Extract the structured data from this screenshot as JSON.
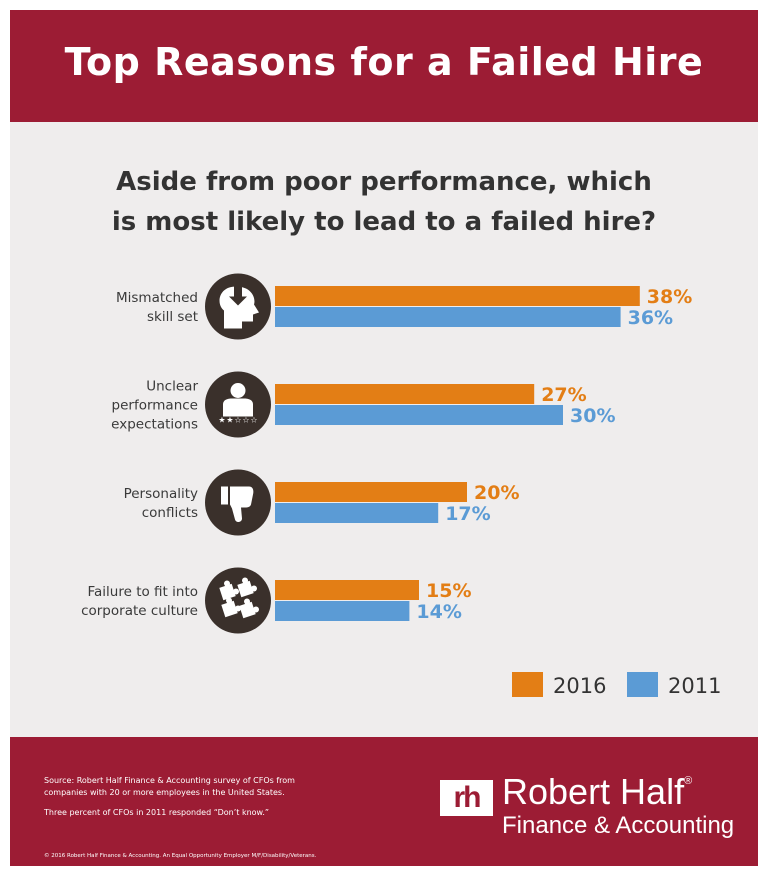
{
  "header": {
    "title": "Top Reasons for a Failed Hire"
  },
  "question": {
    "line1": "Aside from poor performance, which",
    "line2": "is most likely to lead to a failed hire?"
  },
  "chart_data": {
    "type": "bar",
    "orientation": "horizontal",
    "categories": [
      [
        "Mismatched",
        "skill set"
      ],
      [
        "Unclear",
        "performance",
        "expectations"
      ],
      [
        "Personality",
        "conflicts"
      ],
      [
        "Failure to fit into",
        "corporate culture"
      ]
    ],
    "icons": [
      "head-arrow-icon",
      "person-rating-icon",
      "thumbs-down-icon",
      "puzzle-pieces-icon"
    ],
    "series": [
      {
        "name": "2016",
        "color": "#e37e15",
        "values": [
          38,
          27,
          20,
          15
        ],
        "labels": [
          "38%",
          "27%",
          "20%",
          "15%"
        ]
      },
      {
        "name": "2011",
        "color": "#5b9bd5",
        "values": [
          36,
          30,
          17,
          14
        ],
        "labels": [
          "36%",
          "30%",
          "17%",
          "14%"
        ]
      }
    ],
    "unit": "%",
    "legend_position": "bottom-right"
  },
  "footer": {
    "source_line1": "Source: Robert Half Finance & Accounting survey of CFOs from",
    "source_line2": "companies with 20 or more employees in the United States.",
    "note": "Three percent of CFOs in 2011 responded “Don’t know.”",
    "copyright": "© 2016 Robert Half Finance & Accounting. An Equal Opportunity Employer M/F/Disability/Veterans.",
    "logo_mark": "rh",
    "brand": "Robert Half",
    "brand_mark": "®",
    "tagline": "Finance & Accounting"
  }
}
